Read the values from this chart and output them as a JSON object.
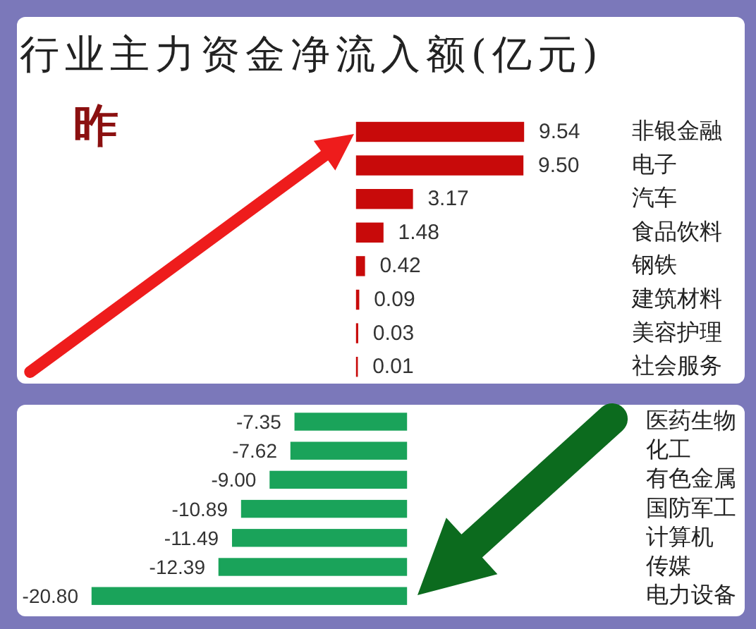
{
  "chart_data": [
    {
      "type": "bar",
      "orientation": "horizontal",
      "title": "行业主力资金净流入额(亿元)",
      "annotations": [
        "昨"
      ],
      "categories": [
        "非银金融",
        "电子",
        "汽车",
        "食品饮料",
        "钢铁",
        "建筑材料",
        "美容护理",
        "社会服务"
      ],
      "values": [
        9.54,
        9.5,
        3.17,
        1.48,
        0.42,
        0.09,
        0.03,
        0.01
      ],
      "value_labels": [
        "9.54",
        "9.50",
        "3.17",
        "1.48",
        "0.42",
        "0.09",
        "0.03",
        "0.01"
      ],
      "color": "#c80a0a",
      "tick_labels": "y"
    },
    {
      "type": "bar",
      "orientation": "horizontal",
      "categories": [
        "医药生物",
        "化工",
        "有色金属",
        "国防军工",
        "计算机",
        "传媒",
        "电力设备"
      ],
      "values": [
        -7.35,
        -7.62,
        -9.0,
        -10.89,
        -11.49,
        -12.39,
        -20.8
      ],
      "value_labels": [
        "-7.35",
        "-7.62",
        "-9.00",
        "-10.89",
        "-11.49",
        "-12.39",
        "-20.80"
      ],
      "color": "#1aa35a",
      "tick_labels": "y"
    }
  ]
}
